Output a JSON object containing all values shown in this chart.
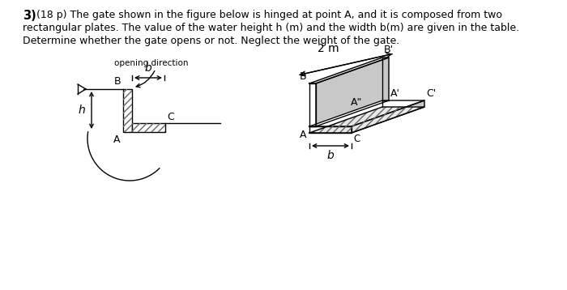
{
  "bg_color": "#ffffff",
  "line_color": "#000000",
  "fig_width": 7.0,
  "fig_height": 3.58,
  "dpi": 100,
  "text_line1_bold": "3)",
  "text_line1_normal": " (18 p) The gate shown in the figure below is hinged at point A, and it is composed from two",
  "text_line2": "rectangular plates. The value of the water height h (m) and the width b(m) are given in the table.",
  "text_line3": "Determine whether the gate opens or not. Neglect the weight of the gate."
}
